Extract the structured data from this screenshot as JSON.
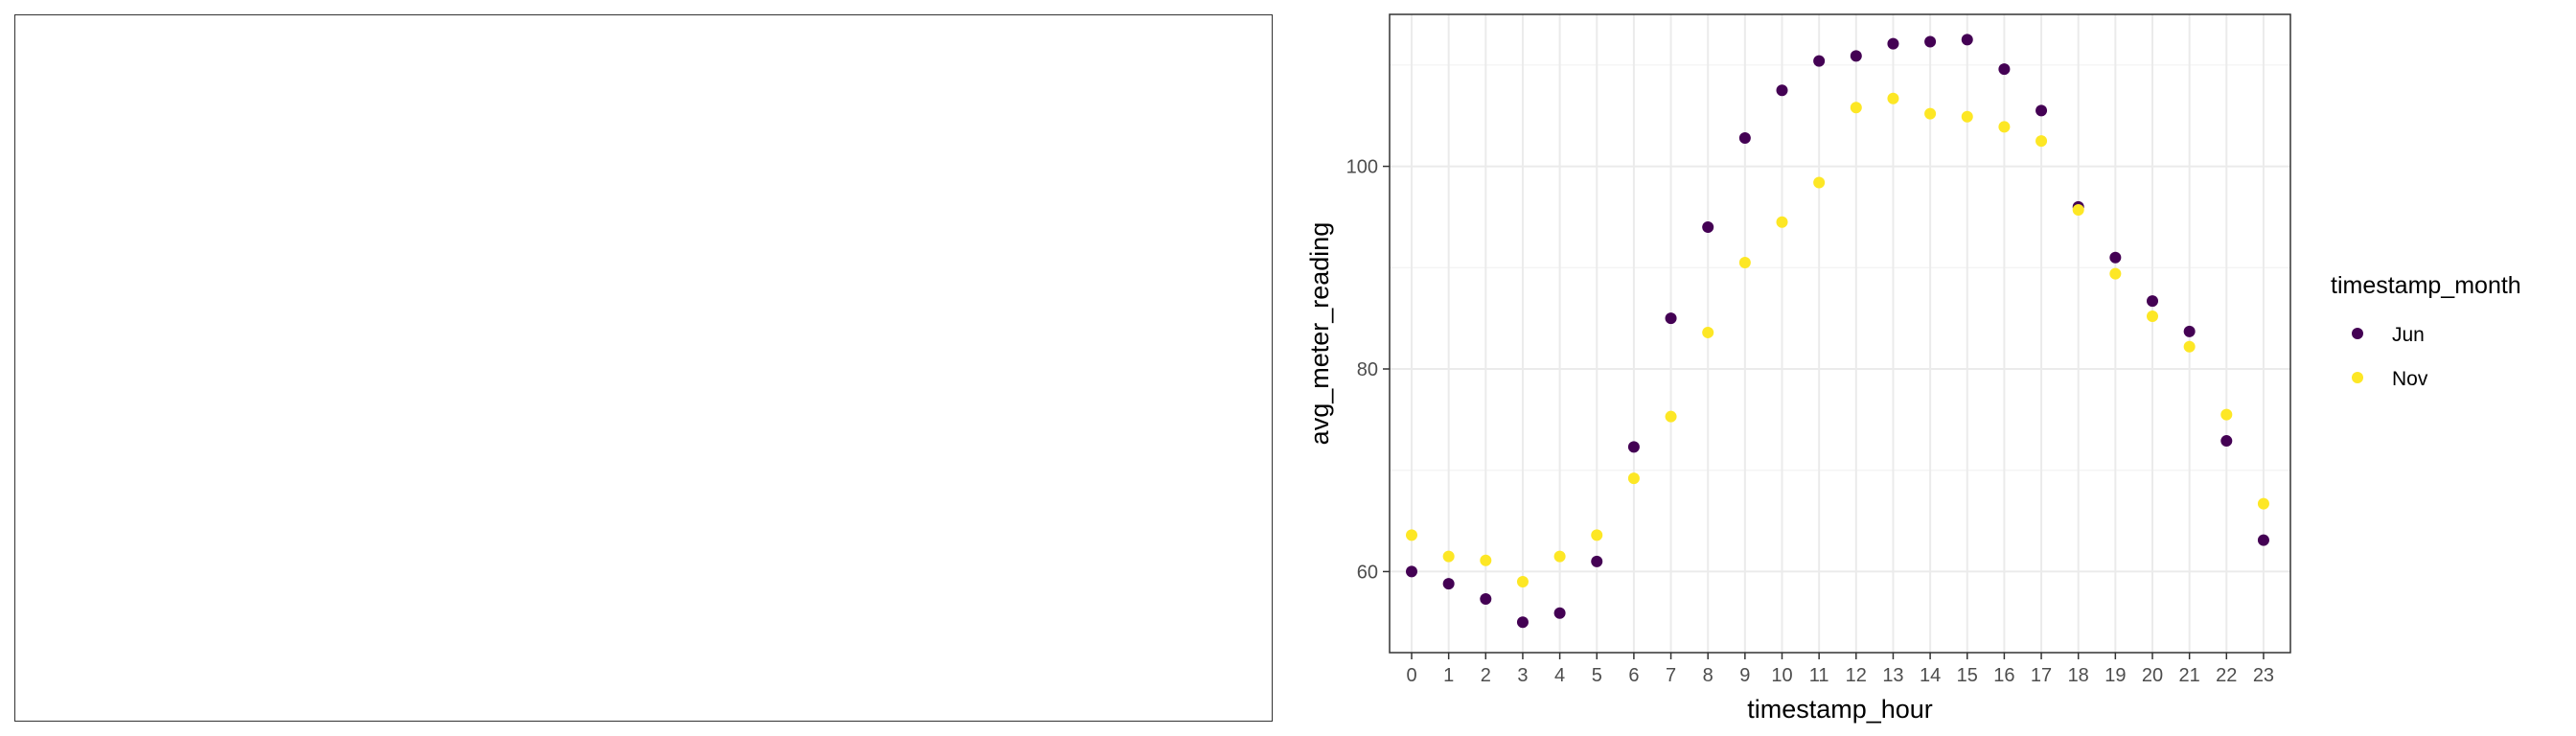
{
  "chart_data": [
    {
      "type": "empty",
      "title": ""
    },
    {
      "type": "scatter",
      "title": "",
      "xlabel": "timestamp_hour",
      "ylabel": "avg_meter_reading",
      "categories": [
        "0",
        "1",
        "2",
        "3",
        "4",
        "5",
        "6",
        "7",
        "8",
        "9",
        "10",
        "11",
        "12",
        "13",
        "14",
        "15",
        "16",
        "17",
        "18",
        "19",
        "20",
        "21",
        "22",
        "23"
      ],
      "ylim": [
        52,
        115
      ],
      "yticks": [
        60,
        80,
        100
      ],
      "grid": true,
      "legend": {
        "title": "timestamp_month",
        "placement": "right"
      },
      "series": [
        {
          "name": "Jun",
          "color": "#440154",
          "values": [
            60.0,
            58.8,
            57.3,
            55.0,
            55.9,
            61.0,
            72.3,
            85.0,
            94.0,
            102.8,
            107.5,
            110.4,
            110.9,
            112.1,
            112.3,
            112.5,
            109.6,
            105.5,
            96.0,
            91.0,
            86.7,
            83.7,
            72.9,
            63.1
          ]
        },
        {
          "name": "Nov",
          "color": "#FDE725",
          "values": [
            63.6,
            61.5,
            61.1,
            59.0,
            61.5,
            63.6,
            69.2,
            75.3,
            83.6,
            90.5,
            94.5,
            98.4,
            105.8,
            106.7,
            105.2,
            104.9,
            103.9,
            102.5,
            95.7,
            89.4,
            85.2,
            82.2,
            75.5,
            66.7
          ]
        }
      ]
    }
  ]
}
